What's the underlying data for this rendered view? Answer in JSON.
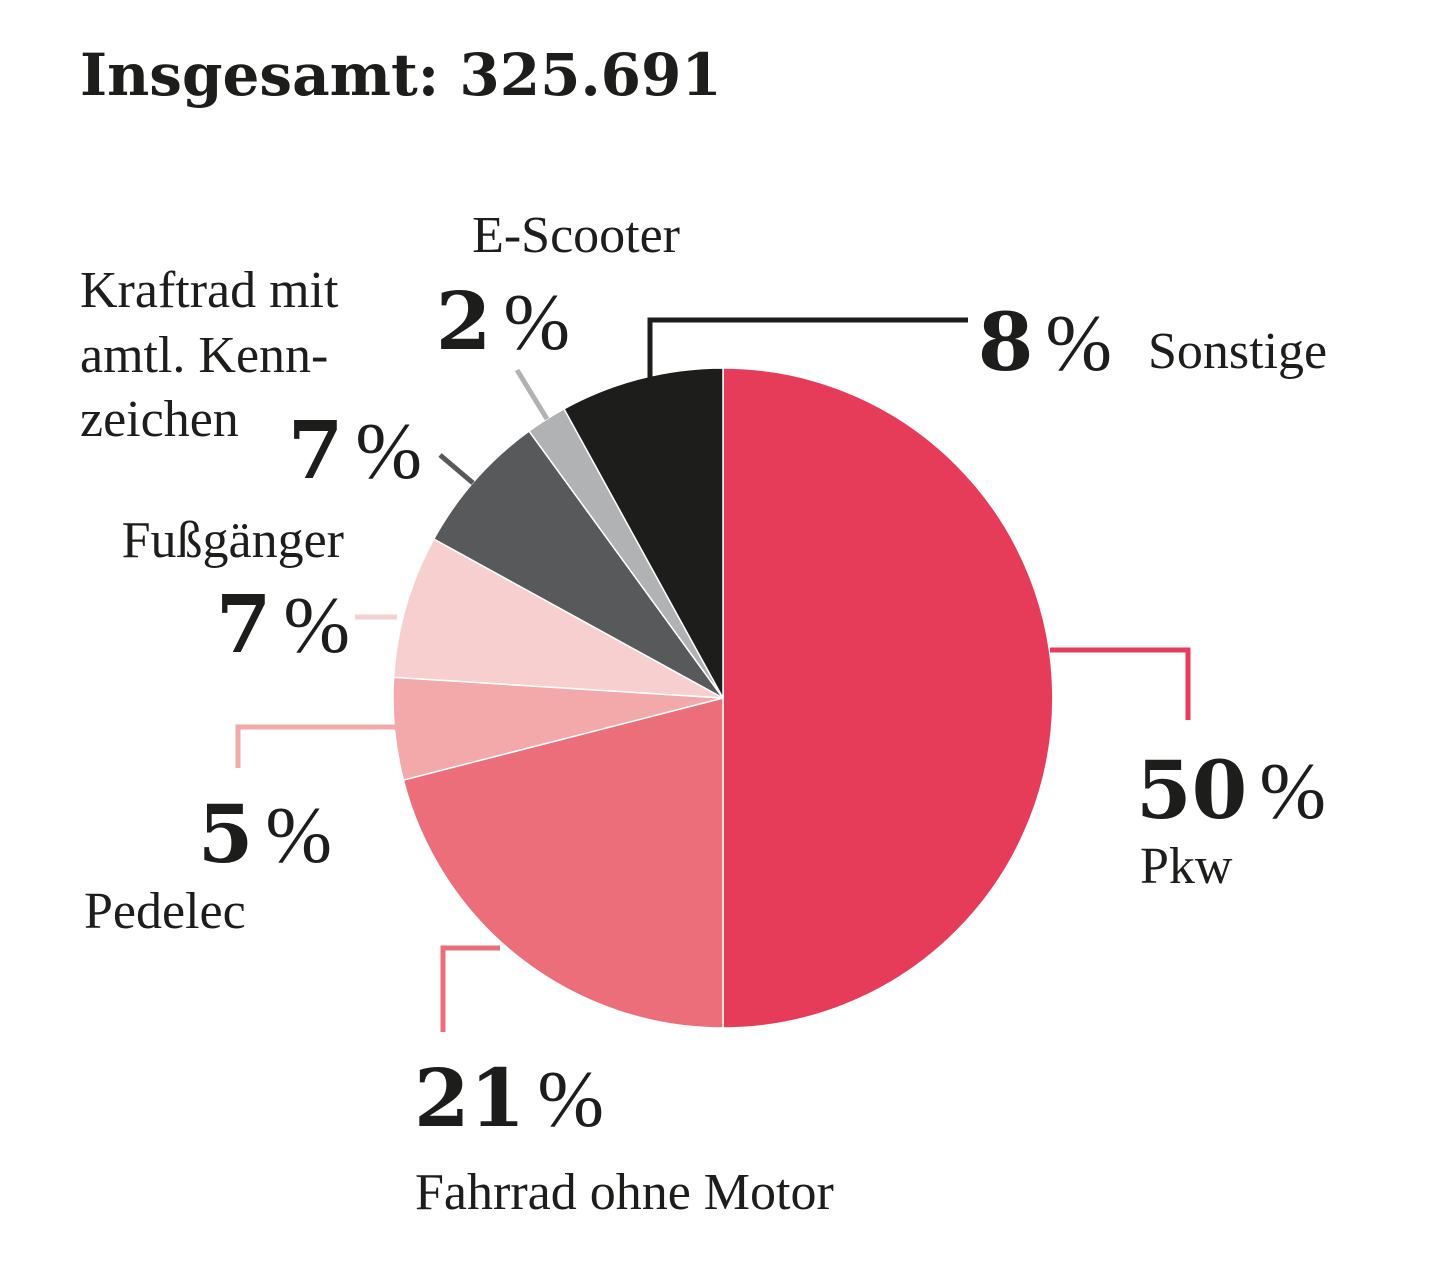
{
  "chart_data": {
    "type": "pie",
    "title": "Insgesamt: 325.691",
    "unit": "%",
    "slices": [
      {
        "name": "Pkw",
        "value": 50,
        "color": "#e63c5a"
      },
      {
        "name": "Fahrrad ohne Motor",
        "value": 21,
        "color": "#ec6e7b"
      },
      {
        "name": "Pedelec",
        "value": 5,
        "color": "#f3a9aa"
      },
      {
        "name": "Fußgänger",
        "value": 7,
        "color": "#f8cfcf"
      },
      {
        "name": "Kraftrad mit amtl. Kennzeichen",
        "value": 7,
        "color": "#58595b"
      },
      {
        "name": "E-Scooter",
        "value": 2,
        "color": "#b1b2b4"
      },
      {
        "name": "Sonstige",
        "value": 8,
        "color": "#1d1d1b"
      }
    ],
    "label_lines": {
      "Kraftrad mit amtl. Kennzeichen": [
        "Kraftrad mit",
        "amtl. Kenn-",
        "zeichen"
      ]
    }
  }
}
